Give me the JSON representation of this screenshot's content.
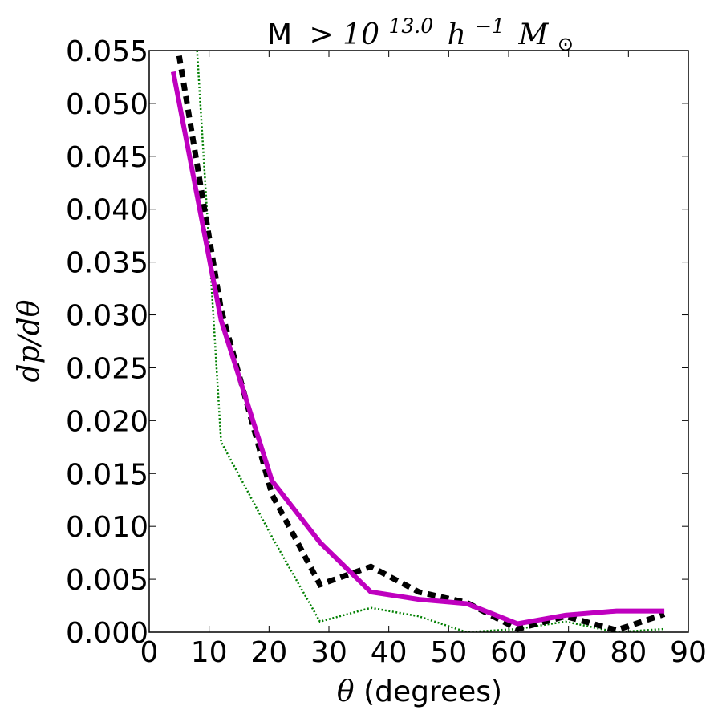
{
  "chart_data": {
    "type": "line",
    "title": {
      "prefix": "M",
      "gt": ">",
      "base": "10",
      "exp": "13.0",
      "h": "h",
      "hexp": "−1",
      "M": "M",
      "sun": "⊙"
    },
    "xlabel": {
      "symbol": "θ",
      "text": " (degrees)"
    },
    "ylabel": "dp/dθ",
    "xlim": [
      0,
      90
    ],
    "ylim": [
      0,
      0.055
    ],
    "xticks": [
      0,
      10,
      20,
      30,
      40,
      50,
      60,
      70,
      80,
      90
    ],
    "yticks": [
      0.0,
      0.005,
      0.01,
      0.015,
      0.02,
      0.025,
      0.03,
      0.035,
      0.04,
      0.045,
      0.05,
      0.055
    ],
    "xtick_labels": [
      "0",
      "10",
      "20",
      "30",
      "40",
      "50",
      "60",
      "70",
      "80",
      "90"
    ],
    "ytick_labels": [
      "0.000",
      "0.005",
      "0.010",
      "0.015",
      "0.020",
      "0.025",
      "0.030",
      "0.035",
      "0.040",
      "0.045",
      "0.050",
      "0.055"
    ],
    "grid": false,
    "series": [
      {
        "style": "solid",
        "color": "#bf00bf",
        "x": [
          4,
          12,
          20.5,
          28.5,
          37,
          45,
          53,
          61.5,
          69.5,
          78,
          86
        ],
        "y": [
          0.053,
          0.0295,
          0.0143,
          0.0085,
          0.0038,
          0.0031,
          0.0027,
          0.0008,
          0.0016,
          0.002,
          0.002
        ]
      },
      {
        "style": "dashed",
        "color": "#000000",
        "x": [
          5,
          12,
          20.5,
          28.5,
          37,
          45,
          53,
          61.5,
          69.5,
          78,
          86
        ],
        "y": [
          0.0545,
          0.0305,
          0.013,
          0.0045,
          0.0062,
          0.0038,
          0.0028,
          0.0003,
          0.0015,
          0.0002,
          0.0017
        ]
      },
      {
        "style": "dotted",
        "color": "#007f00",
        "x": [
          8,
          12,
          20.5,
          28.5,
          37,
          45,
          53,
          61.5,
          69.5,
          78,
          86
        ],
        "y": [
          0.055,
          0.018,
          0.009,
          0.001,
          0.0023,
          0.0015,
          0.0,
          0.0003,
          0.001,
          0.0,
          0.0003
        ]
      }
    ]
  }
}
